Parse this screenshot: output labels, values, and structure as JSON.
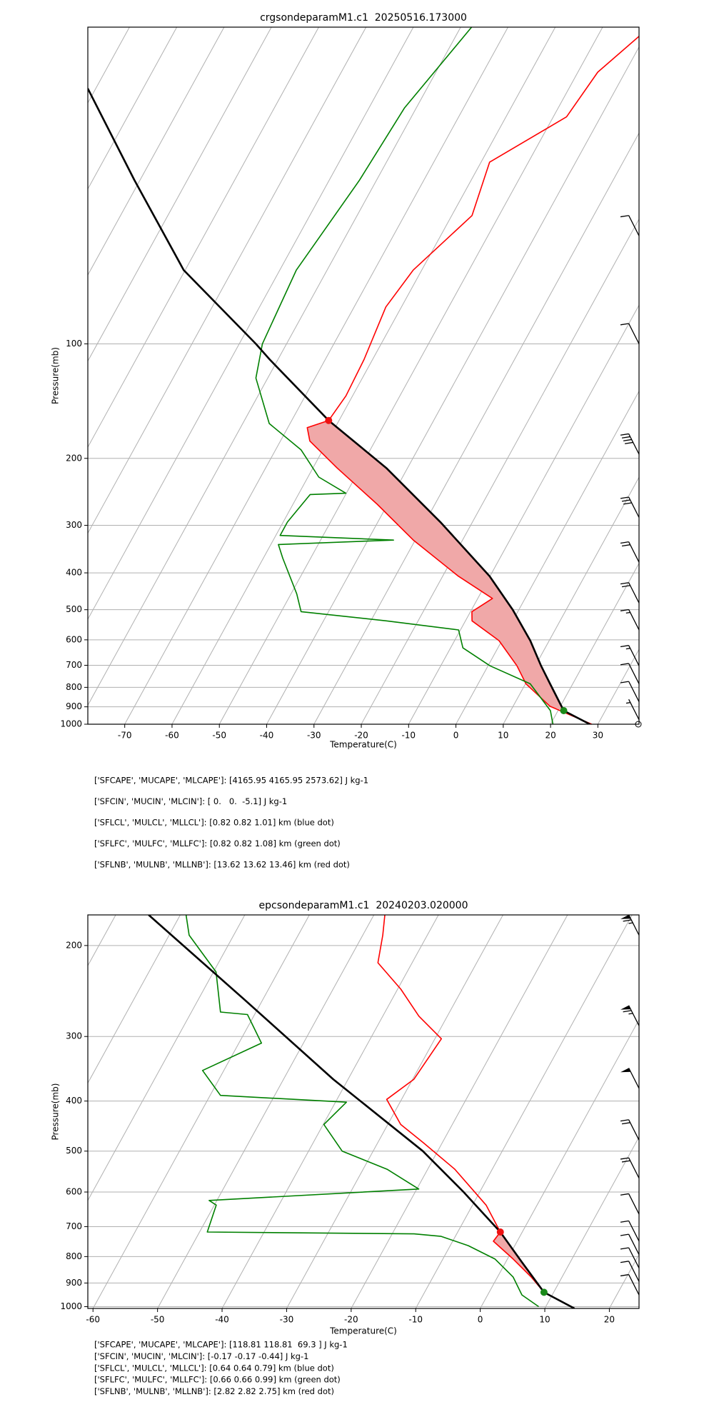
{
  "chart_data": [
    {
      "type": "skewt",
      "title": "crgsondeparamM1.c1  20250516.173000",
      "xlabel": "Temperature(C)",
      "ylabel": "Pressure(mb)",
      "xlim": [
        -77.8,
        38.7
      ],
      "ylim": [
        1000,
        14.7
      ],
      "log_y": true,
      "grid": true,
      "xticks": [
        -70,
        -60,
        -50,
        -40,
        -30,
        -20,
        -10,
        0,
        10,
        20,
        30
      ],
      "yticks": [
        100,
        200,
        300,
        400,
        500,
        600,
        700,
        800,
        900,
        1000
      ],
      "profiles": {
        "temperature": {
          "color": "#ff0000",
          "values": [
            1000,
            897,
            783,
            702,
            603,
            535,
            506,
            467,
            408,
            328,
            264,
            212,
            180,
            166,
            159,
            137,
            110,
            80,
            64,
            46,
            33.3,
            25.3,
            19.3,
            15.5
          ],
          "x": [
            28.7,
            17.8,
            10.1,
            6.1,
            -0.6,
            -8.6,
            -9.7,
            -6.9,
            -16.7,
            -30.4,
            -42.2,
            -54.9,
            -63.8,
            -65.9,
            -62.2,
            -61.4,
            -61.8,
            -63.3,
            -61.8,
            -55.7,
            -58.2,
            -47.2,
            -45.8,
            -41.2
          ]
        },
        "dewpoint": {
          "color": "#008000",
          "values": [
            1000,
            921,
            783,
            702,
            630,
            565,
            535,
            506,
            454,
            366,
            337,
            328,
            319,
            294,
            249,
            247,
            224,
            190,
            162,
            123,
            100,
            64,
            37.1,
            24.0,
            14.7
          ],
          "x": [
            20.5,
            18.4,
            11.0,
            0.4,
            -7.4,
            -10.4,
            -26.7,
            -45.8,
            -48.8,
            -55.9,
            -58.4,
            -34.6,
            -59.1,
            -59.1,
            -57.5,
            -50.1,
            -57.7,
            -64.6,
            -74.4,
            -82.5,
            -85.1,
            -86.5,
            -83.6,
            -82.5,
            -77.7
          ]
        },
        "parcel": {
          "color": "#000000",
          "values": [
            1000,
            921,
            783,
            702,
            603,
            500,
            408,
            294,
            212,
            159,
            110,
            100,
            64,
            37.1,
            21.3
          ],
          "x": [
            28.3,
            21.2,
            15.2,
            11.2,
            6.0,
            -1.3,
            -10.1,
            -26.8,
            -44.5,
            -62.2,
            -81.7,
            -86.5,
            -110.3,
            -131.2,
            -151.7
          ]
        }
      },
      "cape_fill_color": "#f0a8a8",
      "markers": [
        {
          "pressure": 159,
          "temperature": -62.2,
          "color": "#ee1111"
        },
        {
          "pressure": 921,
          "temperature": 21.2,
          "color": "#1a8a1a"
        }
      ],
      "barbs": {
        "pressure": [
          52,
          100,
          195,
          286,
          375,
          480,
          565,
          702,
          783,
          873,
          973,
          1000
        ],
        "speed": [
          10,
          10,
          40,
          30,
          20,
          20,
          15,
          15,
          10,
          10,
          5,
          0
        ]
      },
      "annotations": [
        "['SFCAPE', 'MUCAPE', 'MLCAPE']: [4165.95 4165.95 2573.62] J kg-1",
        "['SFCIN', 'MUCIN', 'MLCIN']: [ 0.   0.  -5.1] J kg-1",
        "['SFLCL', 'MULCL', 'MLLCL']: [0.82 0.82 1.01] km (blue dot)",
        "['SFLFC', 'MULFC', 'MLLFC']: [0.82 0.82 1.08] km (green dot)",
        "['SFLNB', 'MULNB', 'MLLNB']: [13.62 13.62 13.46] km (red dot)"
      ]
    },
    {
      "type": "skewt",
      "title": "epcsondeparamM1.c1  20240203.020000",
      "xlabel": "Temperature(C)",
      "ylabel": "Pressure(mb)",
      "xlim": [
        -60.8,
        24.6
      ],
      "ylim": [
        1008,
        174.5
      ],
      "log_y": true,
      "grid": true,
      "xticks": [
        -60,
        -50,
        -40,
        -30,
        -20,
        -10,
        0,
        10,
        20
      ],
      "yticks": [
        200,
        300,
        400,
        500,
        600,
        700,
        800,
        900,
        1000
      ],
      "profiles": {
        "temperature": {
          "color": "#ff0000",
          "values": [
            938,
            876,
            809,
            747,
            717,
            636,
            542,
            481,
            444,
            397,
            363,
            303,
            274,
            243,
            216,
            191,
            174.5
          ],
          "x": [
            8.5,
            5.2,
            0.9,
            -3.7,
            -3.4,
            -7.9,
            -15.8,
            -23.0,
            -28.0,
            -32.3,
            -29.8,
            -29.0,
            -34.4,
            -39.5,
            -45.3,
            -46.9,
            -48.3
          ]
        },
        "dewpoint": {
          "color": "#008000",
          "values": [
            1000,
            949,
            876,
            809,
            762,
            731,
            723,
            717,
            636,
            623,
            592,
            542,
            500,
            444,
            402,
            390,
            349,
            309,
            272,
            269,
            225,
            191,
            174.5
          ],
          "x": [
            8.9,
            5.3,
            2.4,
            -1.9,
            -7.2,
            -12.2,
            -16.6,
            -48.8,
            -49.7,
            -51.2,
            -19.7,
            -26.3,
            -34.8,
            -39.9,
            -38.3,
            -58.4,
            -63.3,
            -56.5,
            -61.1,
            -65.5,
            -69.6,
            -76.9,
            -79.1
          ]
        },
        "parcel": {
          "color": "#000000",
          "values": [
            1008,
            938,
            820,
            717,
            600,
            500,
            363,
            253,
            174.5
          ],
          "x": [
            14.6,
            8.5,
            2.5,
            -3.4,
            -12.5,
            -22.3,
            -42.3,
            -63.2,
            -84.9
          ]
        }
      },
      "cape_fill_color": "#f0a8a8",
      "markers": [
        {
          "pressure": 717,
          "temperature": -3.4,
          "color": "#ee1111"
        },
        {
          "pressure": 938,
          "temperature": 8.5,
          "color": "#1a8a1a"
        }
      ],
      "barbs": {
        "pressure": [
          191,
          286,
          378,
          476,
          564,
          662,
          747,
          793,
          842,
          894,
          949
        ],
        "speed": [
          65,
          65,
          50,
          20,
          20,
          10,
          10,
          10,
          10,
          10,
          10
        ]
      },
      "annotations": [
        "['SFCAPE', 'MUCAPE', 'MLCAPE']: [118.81 118.81  69.3 ] J kg-1",
        "['SFCIN', 'MUCIN', 'MLCIN']: [-0.17 -0.17 -0.44] J kg-1",
        "['SFLCL', 'MULCL', 'MLLCL']: [0.64 0.64 0.79] km (blue dot)",
        "['SFLFC', 'MULFC', 'MLLFC']: [0.66 0.66 0.99] km (green dot)",
        "['SFLNB', 'MULNB', 'MLLNB']: [2.82 2.82 2.75] km (red dot)"
      ]
    }
  ]
}
